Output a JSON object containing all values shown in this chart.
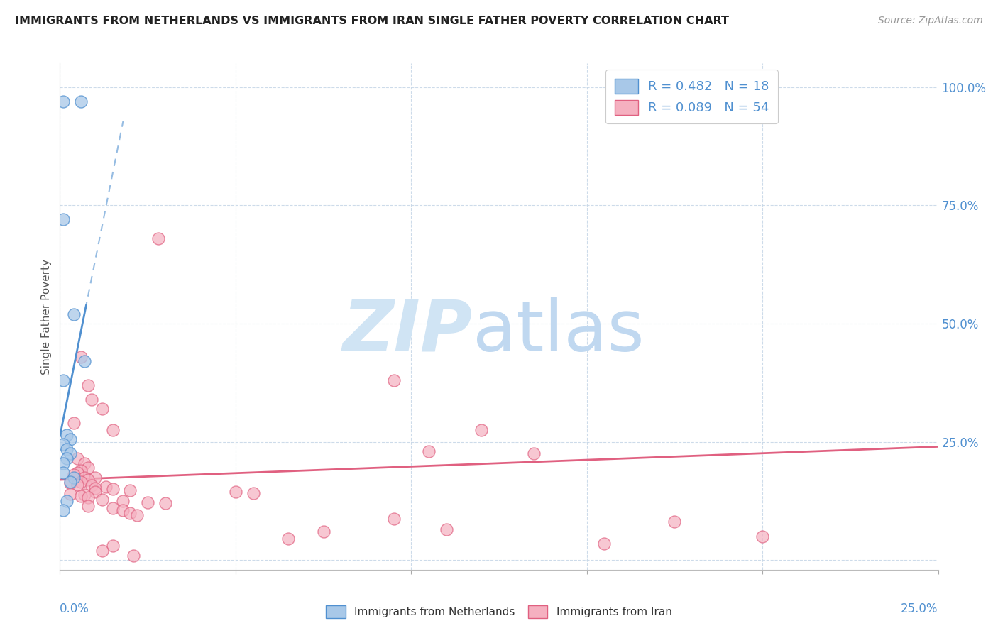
{
  "title": "IMMIGRANTS FROM NETHERLANDS VS IMMIGRANTS FROM IRAN SINGLE FATHER POVERTY CORRELATION CHART",
  "source": "Source: ZipAtlas.com",
  "ylabel": "Single Father Poverty",
  "legend1_text": "R = 0.482   N = 18",
  "legend2_text": "R = 0.089   N = 54",
  "blue_color": "#a8c8e8",
  "pink_color": "#f5b0c0",
  "blue_line_color": "#5090d0",
  "pink_line_color": "#e06080",
  "blue_scatter": [
    [
      0.001,
      0.97
    ],
    [
      0.006,
      0.97
    ],
    [
      0.001,
      0.72
    ],
    [
      0.004,
      0.52
    ],
    [
      0.007,
      0.42
    ],
    [
      0.001,
      0.38
    ],
    [
      0.002,
      0.265
    ],
    [
      0.003,
      0.255
    ],
    [
      0.001,
      0.245
    ],
    [
      0.002,
      0.235
    ],
    [
      0.003,
      0.225
    ],
    [
      0.002,
      0.215
    ],
    [
      0.001,
      0.205
    ],
    [
      0.001,
      0.185
    ],
    [
      0.004,
      0.175
    ],
    [
      0.003,
      0.165
    ],
    [
      0.002,
      0.125
    ],
    [
      0.001,
      0.105
    ]
  ],
  "pink_scatter": [
    [
      0.028,
      0.68
    ],
    [
      0.095,
      0.38
    ],
    [
      0.006,
      0.43
    ],
    [
      0.008,
      0.37
    ],
    [
      0.009,
      0.34
    ],
    [
      0.012,
      0.32
    ],
    [
      0.004,
      0.29
    ],
    [
      0.015,
      0.275
    ],
    [
      0.12,
      0.275
    ],
    [
      0.105,
      0.23
    ],
    [
      0.135,
      0.225
    ],
    [
      0.005,
      0.215
    ],
    [
      0.007,
      0.205
    ],
    [
      0.008,
      0.195
    ],
    [
      0.006,
      0.19
    ],
    [
      0.005,
      0.185
    ],
    [
      0.004,
      0.18
    ],
    [
      0.007,
      0.175
    ],
    [
      0.01,
      0.175
    ],
    [
      0.008,
      0.17
    ],
    [
      0.006,
      0.165
    ],
    [
      0.003,
      0.162
    ],
    [
      0.005,
      0.16
    ],
    [
      0.009,
      0.158
    ],
    [
      0.013,
      0.155
    ],
    [
      0.01,
      0.152
    ],
    [
      0.015,
      0.15
    ],
    [
      0.02,
      0.148
    ],
    [
      0.01,
      0.145
    ],
    [
      0.05,
      0.145
    ],
    [
      0.055,
      0.142
    ],
    [
      0.003,
      0.14
    ],
    [
      0.007,
      0.138
    ],
    [
      0.006,
      0.135
    ],
    [
      0.008,
      0.132
    ],
    [
      0.012,
      0.128
    ],
    [
      0.018,
      0.125
    ],
    [
      0.025,
      0.122
    ],
    [
      0.03,
      0.12
    ],
    [
      0.008,
      0.115
    ],
    [
      0.015,
      0.11
    ],
    [
      0.018,
      0.105
    ],
    [
      0.02,
      0.1
    ],
    [
      0.022,
      0.095
    ],
    [
      0.095,
      0.088
    ],
    [
      0.175,
      0.082
    ],
    [
      0.11,
      0.065
    ],
    [
      0.065,
      0.045
    ],
    [
      0.2,
      0.05
    ],
    [
      0.155,
      0.035
    ],
    [
      0.015,
      0.03
    ],
    [
      0.012,
      0.02
    ],
    [
      0.075,
      0.06
    ],
    [
      0.021,
      0.01
    ]
  ],
  "xlim": [
    0,
    0.25
  ],
  "ylim": [
    -0.02,
    1.05
  ],
  "ytick_vals": [
    0.0,
    0.25,
    0.5,
    0.75,
    1.0
  ],
  "ytick_labels": [
    "",
    "25.0%",
    "50.0%",
    "75.0%",
    "100.0%"
  ],
  "xtick_left_label": "0.0%",
  "xtick_right_label": "25.0%"
}
